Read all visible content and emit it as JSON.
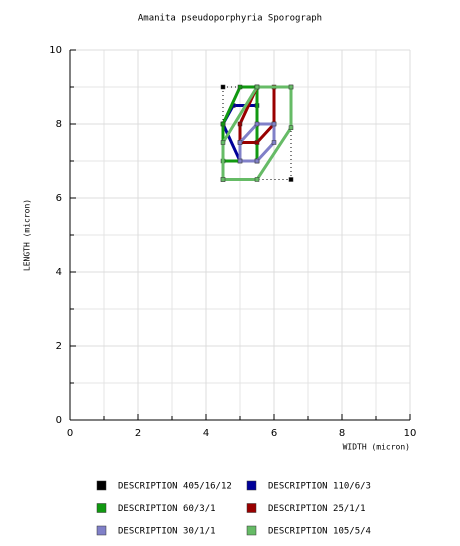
{
  "chart_data": {
    "type": "polygon",
    "title": "Amanita pseudoporphyria Sporograph",
    "x_label": "WIDTH (micron)",
    "y_label": "LENGTH (micron)",
    "xlim": [
      0,
      10
    ],
    "ylim": [
      0,
      10
    ],
    "xticks": [
      0,
      2,
      4,
      6,
      8,
      10
    ],
    "yticks": [
      0,
      2,
      4,
      6,
      8,
      10
    ],
    "grid": true,
    "series": [
      {
        "name": "DESCRIPTION 405/16/12",
        "color": "#000000",
        "line_style": "dotted",
        "x": [
          4.5,
          6.5,
          6.5,
          4.5
        ],
        "values": [
          9,
          9,
          6.5,
          6.5
        ]
      },
      {
        "name": "DESCRIPTION 110/6/3",
        "color": "#000099",
        "line_style": "solid",
        "x": [
          4.5,
          4.8,
          5.5,
          5.5,
          5,
          4.5
        ],
        "values": [
          8,
          8.5,
          8.5,
          7,
          7,
          8
        ]
      },
      {
        "name": "DESCRIPTION 60/3/1",
        "color": "#119911",
        "line_style": "solid",
        "x": [
          4.5,
          4.5,
          5,
          5.5,
          5.5
        ],
        "values": [
          7,
          8,
          9,
          9,
          7
        ]
      },
      {
        "name": "DESCRIPTION 25/1/1",
        "color": "#990000",
        "line_style": "solid",
        "x": [
          5,
          5,
          5.5,
          6,
          6,
          5.5
        ],
        "values": [
          7.5,
          8,
          9,
          9,
          8,
          7.5
        ]
      },
      {
        "name": "DESCRIPTION 30/1/1",
        "color": "#8080c8",
        "line_style": "solid",
        "x": [
          5,
          5,
          5.5,
          6,
          6,
          5.5
        ],
        "values": [
          7,
          7.5,
          8,
          8,
          7.5,
          7
        ]
      },
      {
        "name": "DESCRIPTION 105/5/4",
        "color": "#66bb66",
        "line_style": "solid",
        "x": [
          4.5,
          4.5,
          5.5,
          6.5,
          6.5,
          5.5
        ],
        "values": [
          6.5,
          7.5,
          9,
          9,
          7.9,
          6.5
        ]
      }
    ]
  }
}
